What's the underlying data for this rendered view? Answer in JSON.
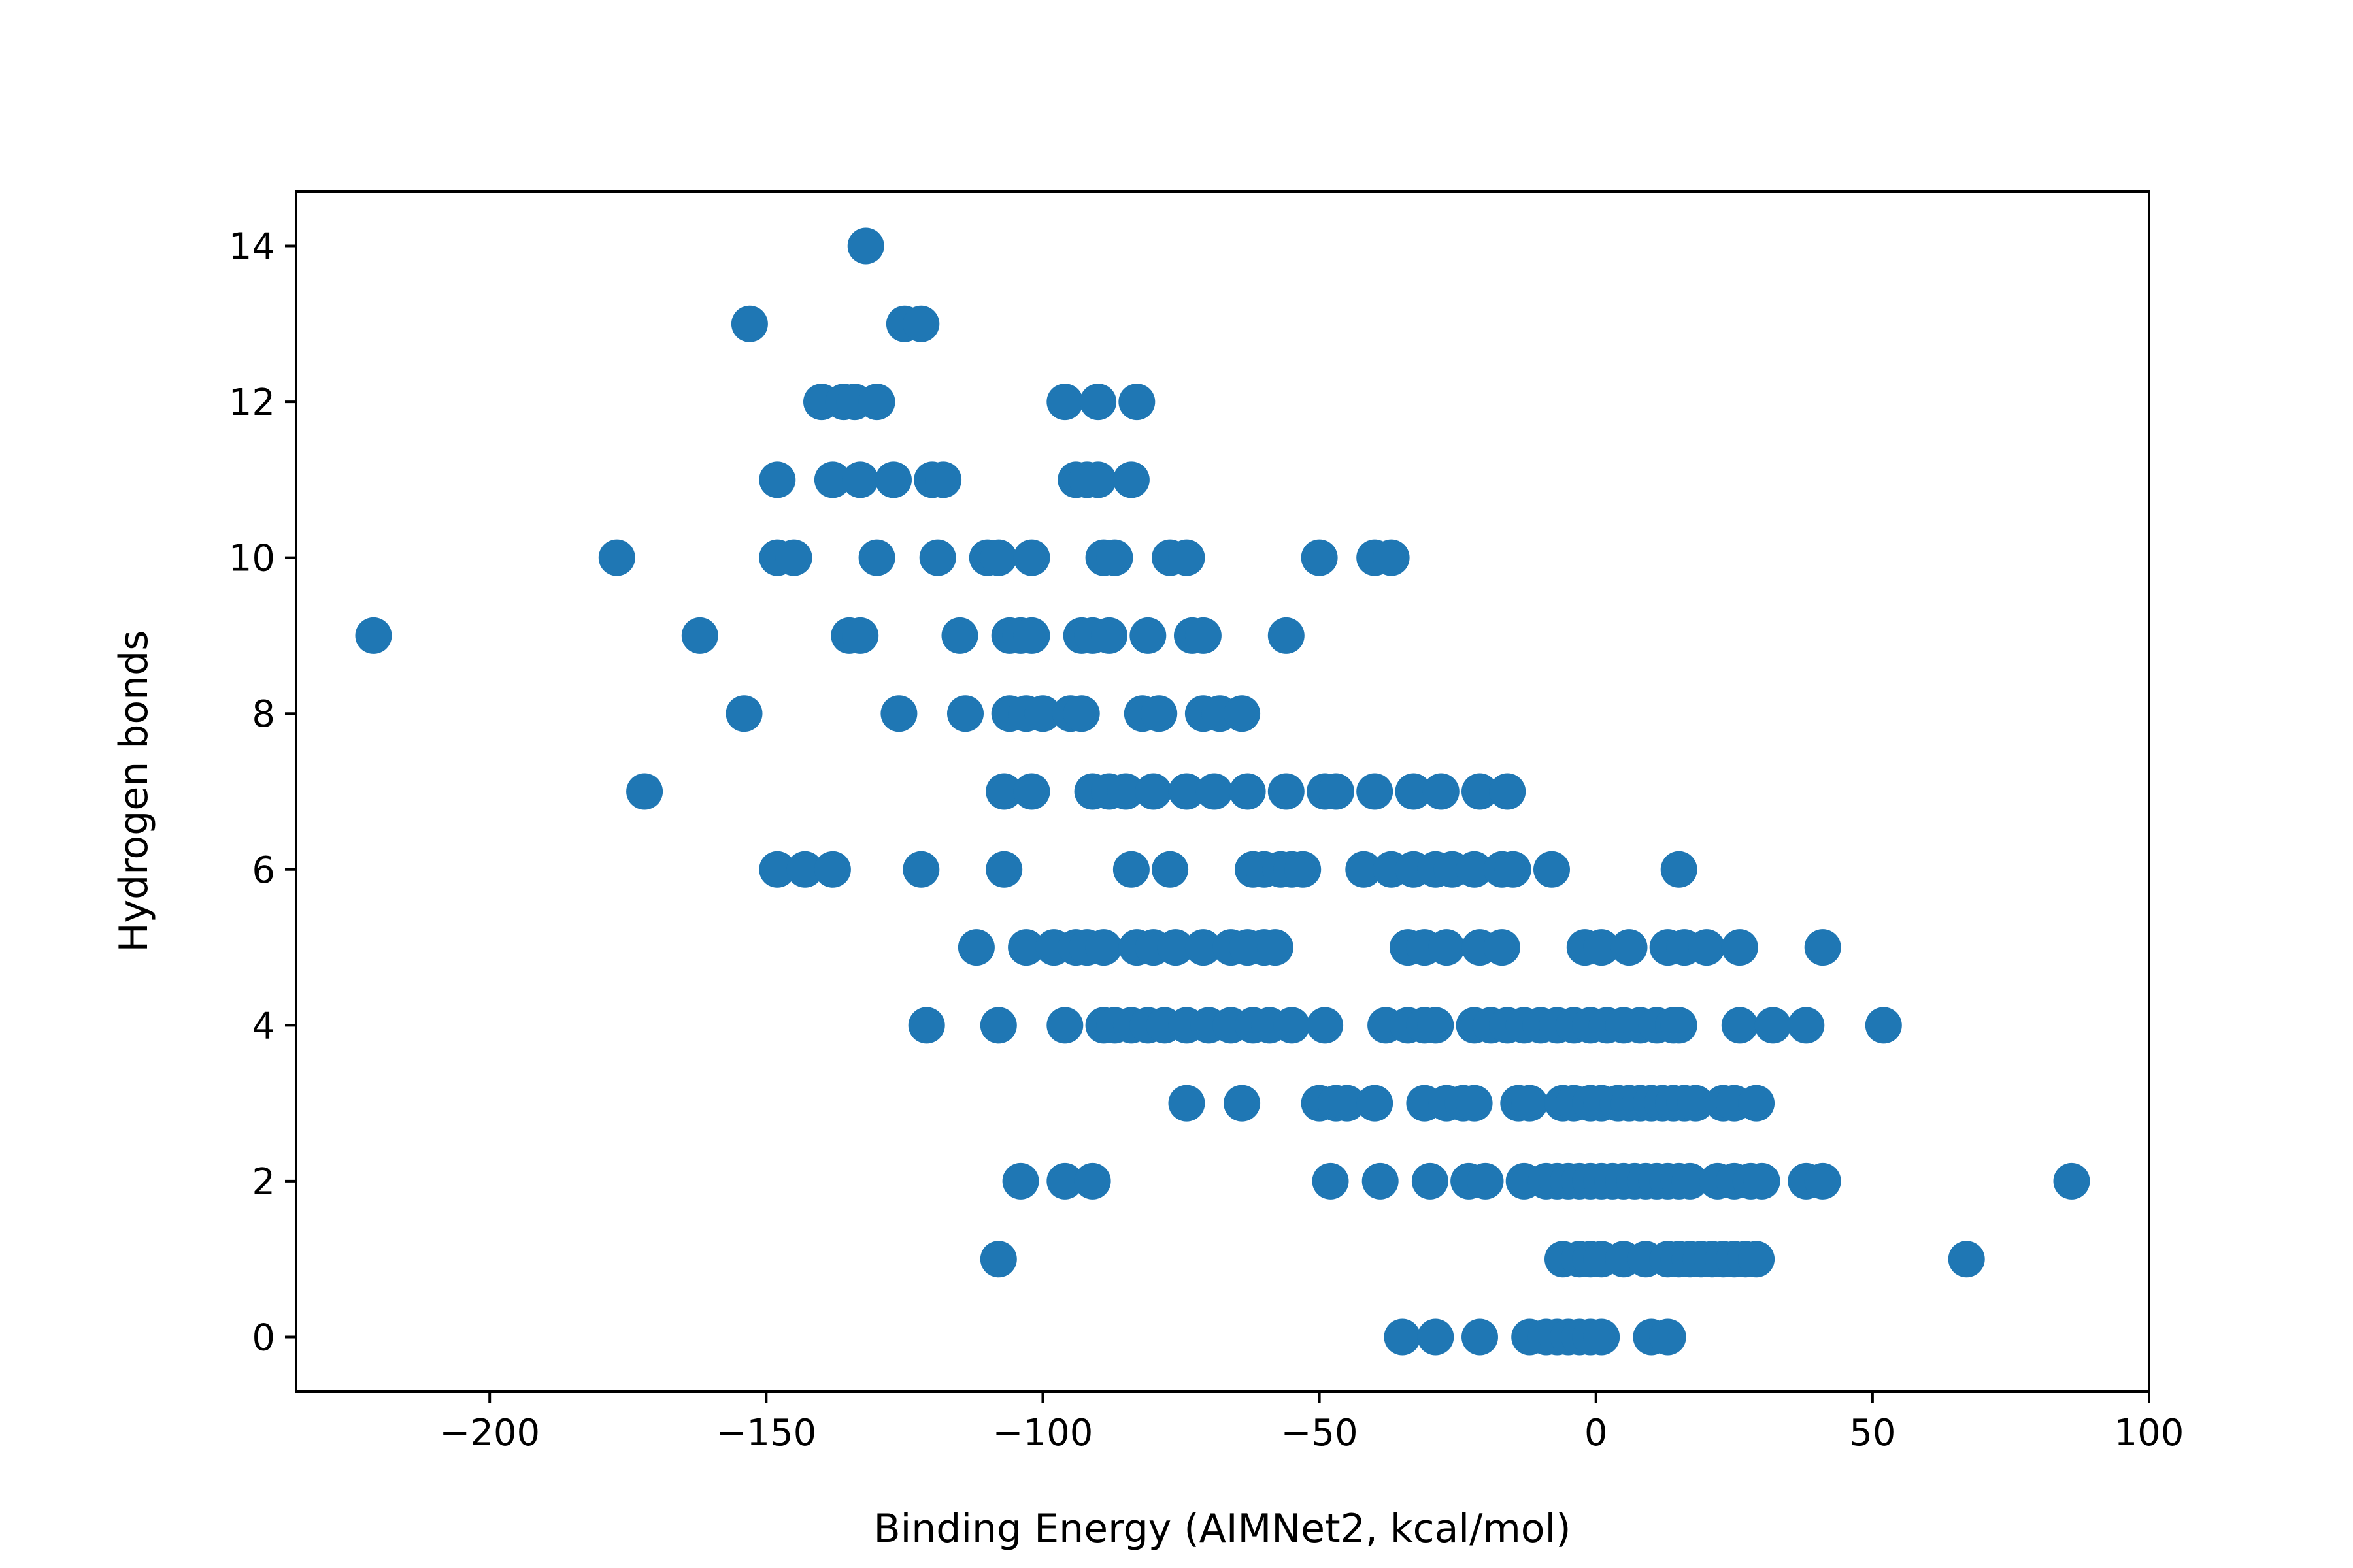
{
  "chart_data": {
    "type": "scatter",
    "title": "",
    "xlabel": "Binding Energy (AIMNet2, kcal/mol)",
    "ylabel": "Hydrogen bonds",
    "xlim": [
      -235,
      100
    ],
    "ylim": [
      -0.7,
      14.7
    ],
    "xticks": [
      -200,
      -150,
      -100,
      -50,
      0,
      50,
      100
    ],
    "xtick_labels": [
      "−200",
      "−150",
      "−100",
      "−50",
      "0",
      "50",
      "100"
    ],
    "yticks": [
      0,
      2,
      4,
      6,
      8,
      10,
      12,
      14
    ],
    "ytick_labels": [
      "0",
      "2",
      "4",
      "6",
      "8",
      "10",
      "12",
      "14"
    ],
    "grid": false,
    "legend": "none",
    "marker_color": "#1f77b4",
    "series": [
      {
        "points": [
          [
            -132,
            14
          ],
          [
            -153,
            13
          ],
          [
            -125,
            13
          ],
          [
            -122,
            13
          ],
          [
            -140,
            12
          ],
          [
            -136,
            12
          ],
          [
            -134,
            12
          ],
          [
            -130,
            12
          ],
          [
            -96,
            12
          ],
          [
            -90,
            12
          ],
          [
            -83,
            12
          ],
          [
            -148,
            11
          ],
          [
            -138,
            11
          ],
          [
            -133,
            11
          ],
          [
            -127,
            11
          ],
          [
            -120,
            11
          ],
          [
            -118,
            11
          ],
          [
            -94,
            11
          ],
          [
            -92,
            11
          ],
          [
            -90,
            11
          ],
          [
            -84,
            11
          ],
          [
            -177,
            10
          ],
          [
            -148,
            10
          ],
          [
            -145,
            10
          ],
          [
            -130,
            10
          ],
          [
            -119,
            10
          ],
          [
            -110,
            10
          ],
          [
            -108,
            10
          ],
          [
            -102,
            10
          ],
          [
            -89,
            10
          ],
          [
            -87,
            10
          ],
          [
            -77,
            10
          ],
          [
            -74,
            10
          ],
          [
            -50,
            10
          ],
          [
            -40,
            10
          ],
          [
            -37,
            10
          ],
          [
            -221,
            9
          ],
          [
            -162,
            9
          ],
          [
            -135,
            9
          ],
          [
            -133,
            9
          ],
          [
            -115,
            9
          ],
          [
            -106,
            9
          ],
          [
            -104,
            9
          ],
          [
            -102,
            9
          ],
          [
            -93,
            9
          ],
          [
            -91,
            9
          ],
          [
            -88,
            9
          ],
          [
            -81,
            9
          ],
          [
            -73,
            9
          ],
          [
            -71,
            9
          ],
          [
            -56,
            9
          ],
          [
            -154,
            8
          ],
          [
            -126,
            8
          ],
          [
            -114,
            8
          ],
          [
            -106,
            8
          ],
          [
            -103,
            8
          ],
          [
            -100,
            8
          ],
          [
            -95,
            8
          ],
          [
            -93,
            8
          ],
          [
            -82,
            8
          ],
          [
            -79,
            8
          ],
          [
            -71,
            8
          ],
          [
            -68,
            8
          ],
          [
            -64,
            8
          ],
          [
            -172,
            7
          ],
          [
            -107,
            7
          ],
          [
            -102,
            7
          ],
          [
            -91,
            7
          ],
          [
            -88,
            7
          ],
          [
            -85,
            7
          ],
          [
            -80,
            7
          ],
          [
            -74,
            7
          ],
          [
            -69,
            7
          ],
          [
            -63,
            7
          ],
          [
            -56,
            7
          ],
          [
            -49,
            7
          ],
          [
            -47,
            7
          ],
          [
            -40,
            7
          ],
          [
            -33,
            7
          ],
          [
            -28,
            7
          ],
          [
            -21,
            7
          ],
          [
            -16,
            7
          ],
          [
            -148,
            6
          ],
          [
            -143,
            6
          ],
          [
            -138,
            6
          ],
          [
            -122,
            6
          ],
          [
            -107,
            6
          ],
          [
            -84,
            6
          ],
          [
            -77,
            6
          ],
          [
            -62,
            6
          ],
          [
            -60,
            6
          ],
          [
            -57,
            6
          ],
          [
            -55,
            6
          ],
          [
            -53,
            6
          ],
          [
            -42,
            6
          ],
          [
            -37,
            6
          ],
          [
            -33,
            6
          ],
          [
            -29,
            6
          ],
          [
            -26,
            6
          ],
          [
            -22,
            6
          ],
          [
            -17,
            6
          ],
          [
            -15,
            6
          ],
          [
            -8,
            6
          ],
          [
            15,
            6
          ],
          [
            -112,
            5
          ],
          [
            -103,
            5
          ],
          [
            -98,
            5
          ],
          [
            -94,
            5
          ],
          [
            -92,
            5
          ],
          [
            -89,
            5
          ],
          [
            -83,
            5
          ],
          [
            -80,
            5
          ],
          [
            -76,
            5
          ],
          [
            -71,
            5
          ],
          [
            -66,
            5
          ],
          [
            -63,
            5
          ],
          [
            -60,
            5
          ],
          [
            -58,
            5
          ],
          [
            -34,
            5
          ],
          [
            -31,
            5
          ],
          [
            -27,
            5
          ],
          [
            -21,
            5
          ],
          [
            -17,
            5
          ],
          [
            -2,
            5
          ],
          [
            1,
            5
          ],
          [
            6,
            5
          ],
          [
            13,
            5
          ],
          [
            16,
            5
          ],
          [
            20,
            5
          ],
          [
            26,
            5
          ],
          [
            41,
            5
          ],
          [
            -121,
            4
          ],
          [
            -108,
            4
          ],
          [
            -96,
            4
          ],
          [
            -89,
            4
          ],
          [
            -87,
            4
          ],
          [
            -84,
            4
          ],
          [
            -81,
            4
          ],
          [
            -78,
            4
          ],
          [
            -74,
            4
          ],
          [
            -70,
            4
          ],
          [
            -66,
            4
          ],
          [
            -62,
            4
          ],
          [
            -59,
            4
          ],
          [
            -55,
            4
          ],
          [
            -49,
            4
          ],
          [
            -38,
            4
          ],
          [
            -34,
            4
          ],
          [
            -31,
            4
          ],
          [
            -29,
            4
          ],
          [
            -22,
            4
          ],
          [
            -19,
            4
          ],
          [
            -16,
            4
          ],
          [
            -13,
            4
          ],
          [
            -10,
            4
          ],
          [
            -7,
            4
          ],
          [
            -4,
            4
          ],
          [
            -1,
            4
          ],
          [
            2,
            4
          ],
          [
            5,
            4
          ],
          [
            8,
            4
          ],
          [
            11,
            4
          ],
          [
            14,
            4
          ],
          [
            15,
            4
          ],
          [
            26,
            4
          ],
          [
            32,
            4
          ],
          [
            38,
            4
          ],
          [
            52,
            4
          ],
          [
            -74,
            3
          ],
          [
            -64,
            3
          ],
          [
            -50,
            3
          ],
          [
            -47,
            3
          ],
          [
            -45,
            3
          ],
          [
            -40,
            3
          ],
          [
            -31,
            3
          ],
          [
            -27,
            3
          ],
          [
            -24,
            3
          ],
          [
            -22,
            3
          ],
          [
            -14,
            3
          ],
          [
            -12,
            3
          ],
          [
            -6,
            3
          ],
          [
            -4,
            3
          ],
          [
            -1,
            3
          ],
          [
            1,
            3
          ],
          [
            4,
            3
          ],
          [
            6,
            3
          ],
          [
            8,
            3
          ],
          [
            10,
            3
          ],
          [
            12,
            3
          ],
          [
            14,
            3
          ],
          [
            16,
            3
          ],
          [
            18,
            3
          ],
          [
            23,
            3
          ],
          [
            25,
            3
          ],
          [
            29,
            3
          ],
          [
            -104,
            2
          ],
          [
            -96,
            2
          ],
          [
            -91,
            2
          ],
          [
            -48,
            2
          ],
          [
            -39,
            2
          ],
          [
            -30,
            2
          ],
          [
            -23,
            2
          ],
          [
            -20,
            2
          ],
          [
            -13,
            2
          ],
          [
            -9,
            2
          ],
          [
            -7,
            2
          ],
          [
            -5,
            2
          ],
          [
            -3,
            2
          ],
          [
            -1,
            2
          ],
          [
            1,
            2
          ],
          [
            3,
            2
          ],
          [
            5,
            2
          ],
          [
            7,
            2
          ],
          [
            9,
            2
          ],
          [
            11,
            2
          ],
          [
            13,
            2
          ],
          [
            15,
            2
          ],
          [
            17,
            2
          ],
          [
            22,
            2
          ],
          [
            25,
            2
          ],
          [
            28,
            2
          ],
          [
            30,
            2
          ],
          [
            38,
            2
          ],
          [
            41,
            2
          ],
          [
            86,
            2
          ],
          [
            -108,
            1
          ],
          [
            -6,
            1
          ],
          [
            -3,
            1
          ],
          [
            -1,
            1
          ],
          [
            1,
            1
          ],
          [
            5,
            1
          ],
          [
            9,
            1
          ],
          [
            13,
            1
          ],
          [
            15,
            1
          ],
          [
            17,
            1
          ],
          [
            19,
            1
          ],
          [
            21,
            1
          ],
          [
            23,
            1
          ],
          [
            25,
            1
          ],
          [
            27,
            1
          ],
          [
            29,
            1
          ],
          [
            67,
            1
          ],
          [
            -35,
            0
          ],
          [
            -29,
            0
          ],
          [
            -21,
            0
          ],
          [
            -12,
            0
          ],
          [
            -9,
            0
          ],
          [
            -7,
            0
          ],
          [
            -5,
            0
          ],
          [
            -3,
            0
          ],
          [
            -1,
            0
          ],
          [
            1,
            0
          ],
          [
            10,
            0
          ],
          [
            13,
            0
          ]
        ]
      }
    ]
  }
}
